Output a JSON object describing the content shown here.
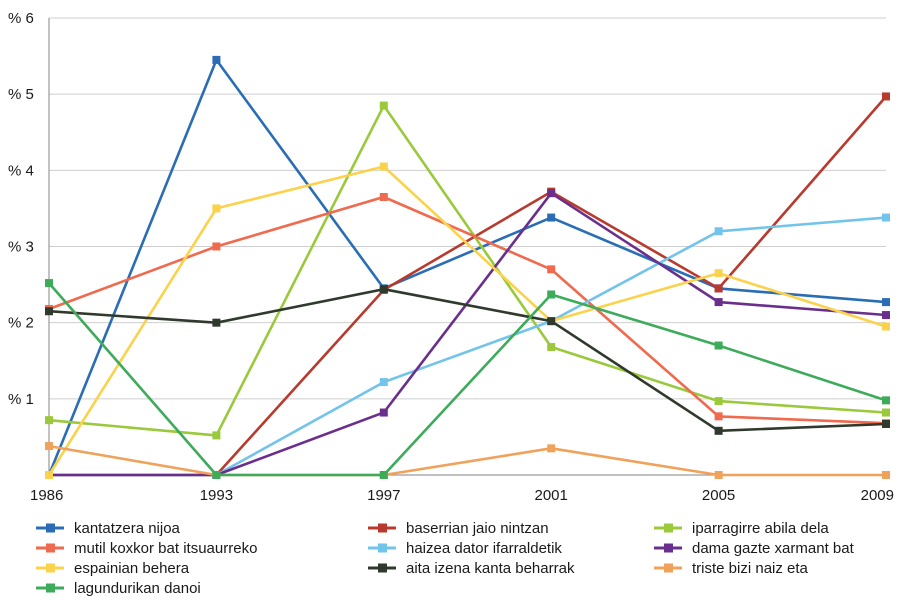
{
  "chart_data": {
    "type": "line",
    "x": [
      "1986",
      "1993",
      "1997",
      "2001",
      "2005",
      "2009"
    ],
    "y_tick_labels": [
      "% 1",
      "% 2",
      "% 3",
      "% 4",
      "% 5",
      "% 6"
    ],
    "y_ticks": [
      1,
      2,
      3,
      4,
      5,
      6
    ],
    "ylim": [
      0,
      6
    ],
    "grid": "horizontal",
    "legend_position": "bottom",
    "series": [
      {
        "name": "kantatzera nijoa",
        "color": "#2a6db5",
        "values": [
          0.0,
          5.45,
          2.45,
          3.38,
          2.45,
          2.27
        ]
      },
      {
        "name": "baserrian jaio nintzan",
        "color": "#b83a2e",
        "values": [
          0.0,
          0.0,
          2.43,
          3.72,
          2.45,
          4.97
        ]
      },
      {
        "name": "iparragirre abila dela",
        "color": "#9ac93c",
        "values": [
          0.72,
          0.52,
          4.85,
          1.68,
          0.97,
          0.82
        ]
      },
      {
        "name": "mutil koxkor bat itsuaurreko",
        "color": "#ef6a4e",
        "values": [
          2.18,
          3.0,
          3.65,
          2.7,
          0.77,
          0.68
        ]
      },
      {
        "name": "haizea dator ifarraldetik",
        "color": "#72c4ea",
        "values": [
          0.0,
          0.0,
          1.22,
          2.02,
          3.2,
          3.38
        ]
      },
      {
        "name": "dama gazte xarmant bat",
        "color": "#6a2f8c",
        "values": [
          0.0,
          0.0,
          0.82,
          3.7,
          2.27,
          2.1
        ]
      },
      {
        "name": "espainian behera",
        "color": "#fbd24b",
        "values": [
          0.0,
          3.5,
          4.05,
          2.02,
          2.65,
          1.95
        ]
      },
      {
        "name": "aita izena kanta beharrak",
        "color": "#2f3a2c",
        "values": [
          2.15,
          2.0,
          2.44,
          2.02,
          0.58,
          0.67
        ]
      },
      {
        "name": "triste bizi naiz eta",
        "color": "#f0a25a",
        "values": [
          0.38,
          0.0,
          0.0,
          0.35,
          0.0,
          0.0
        ]
      },
      {
        "name": "lagundurikan danoi",
        "color": "#3dab5a",
        "values": [
          2.52,
          0.0,
          0.0,
          2.37,
          1.7,
          0.98
        ]
      }
    ]
  }
}
